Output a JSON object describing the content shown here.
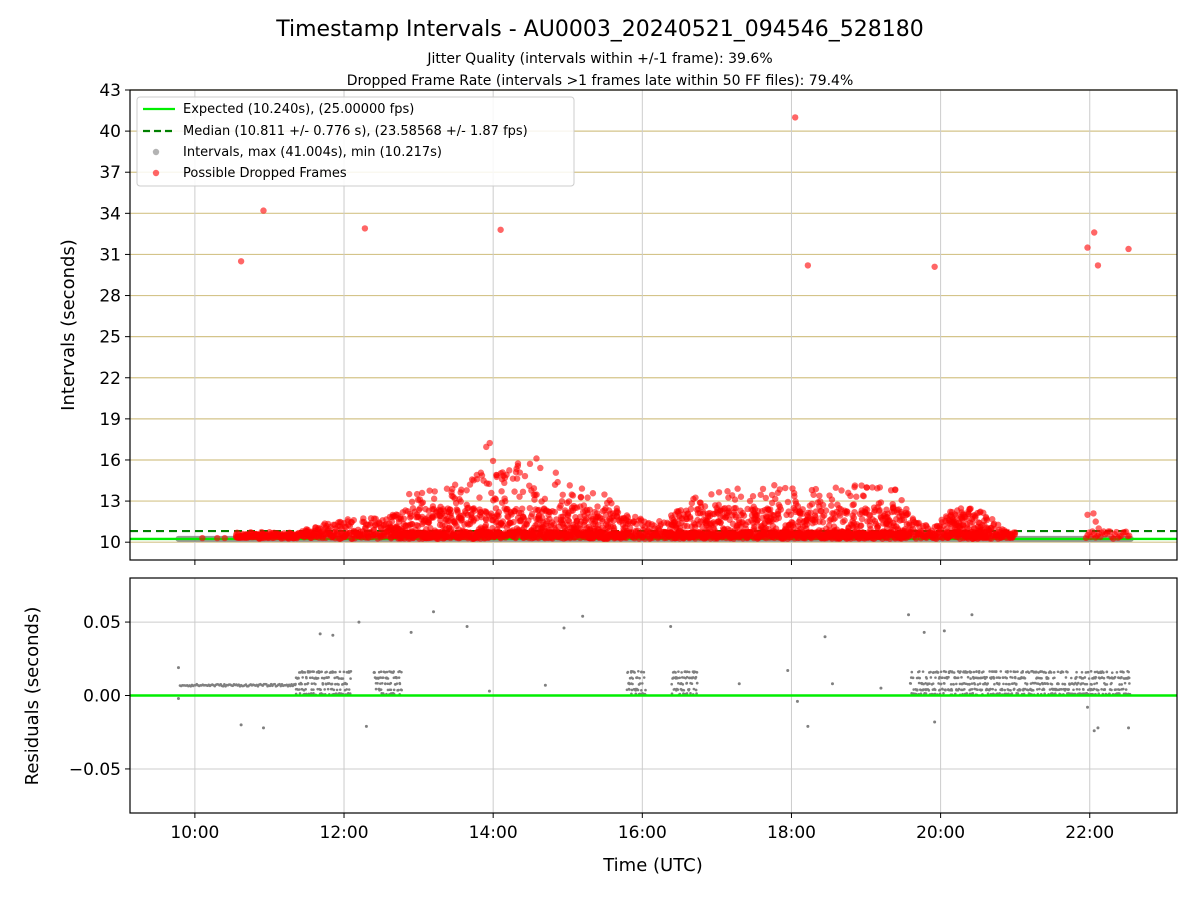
{
  "title": "Timestamp Intervals - AU0003_20240521_094546_528180",
  "subtitle_1": "Jitter Quality (intervals within +/-1 frame): 39.6%",
  "subtitle_2": "Dropped Frame Rate (intervals >1 frames late within 50 FF files): 79.4%",
  "colors": {
    "expected": "#00ee00",
    "median": "#007f00",
    "intervals": "#808080",
    "dropped": "#ff0000",
    "hgrid_top": "#d4c48a",
    "grid": "#cccccc"
  },
  "chart_data": [
    {
      "type": "scatter",
      "ylabel": "Intervals (seconds)",
      "ylim": [
        8.7,
        43
      ],
      "yticks": [
        "10",
        "13",
        "16",
        "19",
        "22",
        "25",
        "28",
        "31",
        "34",
        "37",
        "40",
        "43"
      ],
      "xlim": [
        9.13,
        23.17
      ],
      "grid": true,
      "legend_position": "upper-left",
      "legend": [
        {
          "label": "Expected (10.240s), (25.00000 fps)",
          "style": "solid-line",
          "color": "#00ee00"
        },
        {
          "label": "Median (10.811 +/- 0.776 s), (23.58568 +/- 1.87 fps)",
          "style": "dashed-line",
          "color": "#007f00"
        },
        {
          "label": "Intervals, max (41.004s), min (10.217s)",
          "style": "marker",
          "color": "#808080"
        },
        {
          "label": "Possible Dropped Frames",
          "style": "marker",
          "color": "#ff0000"
        }
      ],
      "expected_value": 10.24,
      "median_value": 10.811,
      "intervals_range": [
        9.78,
        22.55
      ],
      "dropped_outliers": [
        {
          "x": 10.62,
          "y": 30.5
        },
        {
          "x": 10.92,
          "y": 34.2
        },
        {
          "x": 12.28,
          "y": 32.9
        },
        {
          "x": 14.1,
          "y": 32.8
        },
        {
          "x": 18.05,
          "y": 41.0
        },
        {
          "x": 18.22,
          "y": 30.2
        },
        {
          "x": 19.92,
          "y": 30.1
        },
        {
          "x": 21.97,
          "y": 31.5
        },
        {
          "x": 22.06,
          "y": 32.6
        },
        {
          "x": 22.11,
          "y": 30.2
        },
        {
          "x": 22.52,
          "y": 31.4
        }
      ],
      "dropped_envelope": [
        {
          "x": 10.55,
          "upper": 10.4
        },
        {
          "x": 11.35,
          "upper": 10.6
        },
        {
          "x": 11.5,
          "upper": 11.0
        },
        {
          "x": 12.0,
          "upper": 11.8
        },
        {
          "x": 12.5,
          "upper": 11.8
        },
        {
          "x": 12.8,
          "upper": 12.3
        },
        {
          "x": 12.9,
          "upper": 13.9
        },
        {
          "x": 13.3,
          "upper": 14.0
        },
        {
          "x": 13.7,
          "upper": 14.5
        },
        {
          "x": 13.95,
          "upper": 17.5
        },
        {
          "x": 14.05,
          "upper": 15.5
        },
        {
          "x": 14.4,
          "upper": 16.0
        },
        {
          "x": 14.6,
          "upper": 16.5
        },
        {
          "x": 15.0,
          "upper": 14.2
        },
        {
          "x": 15.5,
          "upper": 13.5
        },
        {
          "x": 15.8,
          "upper": 12.0
        },
        {
          "x": 16.2,
          "upper": 11.5
        },
        {
          "x": 16.5,
          "upper": 12.5
        },
        {
          "x": 16.8,
          "upper": 13.8
        },
        {
          "x": 17.3,
          "upper": 14.0
        },
        {
          "x": 17.8,
          "upper": 14.2
        },
        {
          "x": 18.3,
          "upper": 13.9
        },
        {
          "x": 18.9,
          "upper": 14.3
        },
        {
          "x": 19.4,
          "upper": 14.0
        },
        {
          "x": 19.6,
          "upper": 11.8
        },
        {
          "x": 19.9,
          "upper": 11.0
        },
        {
          "x": 20.2,
          "upper": 12.7
        },
        {
          "x": 20.6,
          "upper": 12.2
        },
        {
          "x": 20.95,
          "upper": 10.4
        },
        {
          "x": 21.0,
          "upper": 10.3
        }
      ],
      "dropped_end_cluster": {
        "range": [
          21.95,
          22.55
        ],
        "upper": 11.5
      }
    },
    {
      "type": "scatter",
      "xlabel": "Time (UTC)",
      "ylabel": "Residuals (seconds)",
      "ylim": [
        -0.08,
        0.08
      ],
      "yticks": [
        {
          "value": 0.05,
          "label": "0.05"
        },
        {
          "value": 0.0,
          "label": "0.00"
        },
        {
          "value": -0.05,
          "label": "−0.05"
        }
      ],
      "xticks": [
        {
          "value": 10,
          "label": "10:00"
        },
        {
          "value": 12,
          "label": "12:00"
        },
        {
          "value": 14,
          "label": "14:00"
        },
        {
          "value": 16,
          "label": "16:00"
        },
        {
          "value": 18,
          "label": "18:00"
        },
        {
          "value": 20,
          "label": "20:00"
        },
        {
          "value": 22,
          "label": "22:00"
        }
      ],
      "xlim": [
        9.13,
        23.17
      ],
      "zero_line": 0.0,
      "early_baseline": {
        "range": [
          9.8,
          11.35
        ],
        "value": 0.007
      },
      "clusters": [
        {
          "range": [
            11.35,
            12.1
          ],
          "max": 0.017
        },
        {
          "range": [
            12.4,
            12.78
          ],
          "max": 0.017
        },
        {
          "range": [
            15.8,
            16.05
          ],
          "max": 0.017
        },
        {
          "range": [
            16.4,
            16.75
          ],
          "max": 0.017
        },
        {
          "range": [
            19.6,
            20.4
          ],
          "max": 0.017
        },
        {
          "range": [
            20.4,
            22.55
          ],
          "max": 0.017
        }
      ],
      "outliers": [
        {
          "x": 9.78,
          "y": 0.019
        },
        {
          "x": 9.78,
          "y": -0.002
        },
        {
          "x": 10.62,
          "y": -0.02
        },
        {
          "x": 10.92,
          "y": -0.022
        },
        {
          "x": 11.68,
          "y": 0.042
        },
        {
          "x": 11.85,
          "y": 0.041
        },
        {
          "x": 12.2,
          "y": 0.05
        },
        {
          "x": 12.3,
          "y": -0.021
        },
        {
          "x": 12.9,
          "y": 0.043
        },
        {
          "x": 13.2,
          "y": 0.057
        },
        {
          "x": 13.65,
          "y": 0.047
        },
        {
          "x": 15.2,
          "y": 0.054
        },
        {
          "x": 14.95,
          "y": 0.046
        },
        {
          "x": 16.38,
          "y": 0.047
        },
        {
          "x": 17.95,
          "y": 0.017
        },
        {
          "x": 18.08,
          "y": -0.004
        },
        {
          "x": 18.22,
          "y": -0.021
        },
        {
          "x": 18.45,
          "y": 0.04
        },
        {
          "x": 19.57,
          "y": 0.055
        },
        {
          "x": 19.78,
          "y": 0.043
        },
        {
          "x": 19.92,
          "y": -0.018
        },
        {
          "x": 20.05,
          "y": 0.044
        },
        {
          "x": 20.42,
          "y": 0.055
        },
        {
          "x": 21.97,
          "y": -0.008
        },
        {
          "x": 22.06,
          "y": -0.024
        },
        {
          "x": 22.11,
          "y": -0.022
        },
        {
          "x": 22.52,
          "y": -0.022
        },
        {
          "x": 13.95,
          "y": 0.003
        },
        {
          "x": 14.7,
          "y": 0.007
        },
        {
          "x": 17.3,
          "y": 0.008
        },
        {
          "x": 18.55,
          "y": 0.008
        },
        {
          "x": 19.2,
          "y": 0.005
        }
      ]
    }
  ]
}
